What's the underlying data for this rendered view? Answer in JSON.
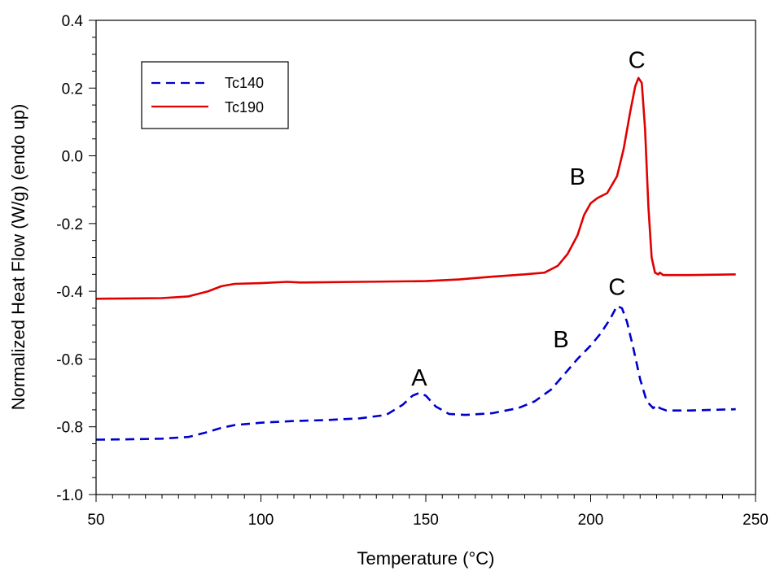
{
  "chart_data": {
    "type": "line",
    "title": "",
    "xlabel": "Temperature (°C)",
    "ylabel": "Normalized Heat Flow (W/g) (endo up)",
    "xlim": [
      50,
      250
    ],
    "ylim": [
      -1.0,
      0.4
    ],
    "x_ticks": [
      "50",
      "100",
      "150",
      "200",
      "250"
    ],
    "y_ticks": [
      "-1.0",
      "-0.8",
      "-0.6",
      "-0.4",
      "-0.2",
      "0.0",
      "0.2",
      "0.4"
    ],
    "x_minor_step": 5,
    "y_minor_step": 0.05,
    "grid": false,
    "legend_position": "top-left",
    "series": [
      {
        "name": "Tc140",
        "color": "#0000cc",
        "style": "dashed",
        "points": [
          [
            50,
            -0.838
          ],
          [
            60,
            -0.837
          ],
          [
            70,
            -0.835
          ],
          [
            78,
            -0.83
          ],
          [
            84,
            -0.815
          ],
          [
            88,
            -0.803
          ],
          [
            92,
            -0.795
          ],
          [
            100,
            -0.788
          ],
          [
            110,
            -0.783
          ],
          [
            120,
            -0.78
          ],
          [
            130,
            -0.775
          ],
          [
            138,
            -0.765
          ],
          [
            143,
            -0.735
          ],
          [
            146,
            -0.708
          ],
          [
            148,
            -0.7
          ],
          [
            150,
            -0.708
          ],
          [
            153,
            -0.74
          ],
          [
            157,
            -0.762
          ],
          [
            162,
            -0.765
          ],
          [
            170,
            -0.76
          ],
          [
            178,
            -0.745
          ],
          [
            183,
            -0.725
          ],
          [
            188,
            -0.69
          ],
          [
            192,
            -0.645
          ],
          [
            196,
            -0.6
          ],
          [
            200,
            -0.56
          ],
          [
            203,
            -0.525
          ],
          [
            206,
            -0.48
          ],
          [
            208,
            -0.443
          ],
          [
            209.5,
            -0.45
          ],
          [
            211,
            -0.49
          ],
          [
            213,
            -0.57
          ],
          [
            215,
            -0.66
          ],
          [
            217,
            -0.725
          ],
          [
            219,
            -0.745
          ],
          [
            220,
            -0.735
          ],
          [
            221,
            -0.745
          ],
          [
            223,
            -0.752
          ],
          [
            230,
            -0.752
          ],
          [
            244,
            -0.748
          ]
        ]
      },
      {
        "name": "Tc190",
        "color": "#e00000",
        "style": "solid",
        "points": [
          [
            50,
            -0.422
          ],
          [
            60,
            -0.421
          ],
          [
            70,
            -0.42
          ],
          [
            78,
            -0.415
          ],
          [
            84,
            -0.4
          ],
          [
            88,
            -0.385
          ],
          [
            92,
            -0.378
          ],
          [
            100,
            -0.376
          ],
          [
            108,
            -0.372
          ],
          [
            112,
            -0.374
          ],
          [
            130,
            -0.372
          ],
          [
            150,
            -0.37
          ],
          [
            160,
            -0.365
          ],
          [
            170,
            -0.357
          ],
          [
            180,
            -0.35
          ],
          [
            186,
            -0.345
          ],
          [
            190,
            -0.325
          ],
          [
            193,
            -0.29
          ],
          [
            196,
            -0.235
          ],
          [
            198,
            -0.175
          ],
          [
            200,
            -0.14
          ],
          [
            202,
            -0.125
          ],
          [
            205,
            -0.11
          ],
          [
            208,
            -0.06
          ],
          [
            210,
            0.02
          ],
          [
            212,
            0.13
          ],
          [
            213.5,
            0.205
          ],
          [
            214.5,
            0.23
          ],
          [
            215.5,
            0.215
          ],
          [
            216.5,
            0.08
          ],
          [
            217.5,
            -0.15
          ],
          [
            218.5,
            -0.3
          ],
          [
            219.5,
            -0.345
          ],
          [
            220.5,
            -0.35
          ],
          [
            221,
            -0.345
          ],
          [
            222,
            -0.352
          ],
          [
            230,
            -0.352
          ],
          [
            244,
            -0.35
          ]
        ]
      }
    ],
    "annotations": [
      {
        "text": "A",
        "x": 148,
        "y": -0.678
      },
      {
        "text": "B",
        "x": 191,
        "y": -0.565
      },
      {
        "text": "C",
        "x": 208,
        "y": -0.41
      },
      {
        "text": "B",
        "x": 196,
        "y": -0.085
      },
      {
        "text": "C",
        "x": 214,
        "y": 0.26
      }
    ]
  }
}
